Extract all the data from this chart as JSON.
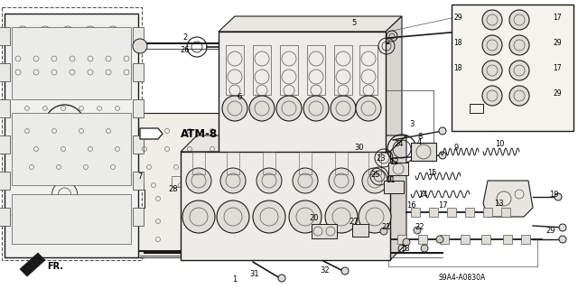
{
  "bg_color": "#f5f5f0",
  "dark": "#1a1a1a",
  "gray": "#555555",
  "lgray": "#888888",
  "diagram_code": "S9A4-A0830A",
  "figsize": [
    6.4,
    3.2
  ],
  "dpi": 100
}
